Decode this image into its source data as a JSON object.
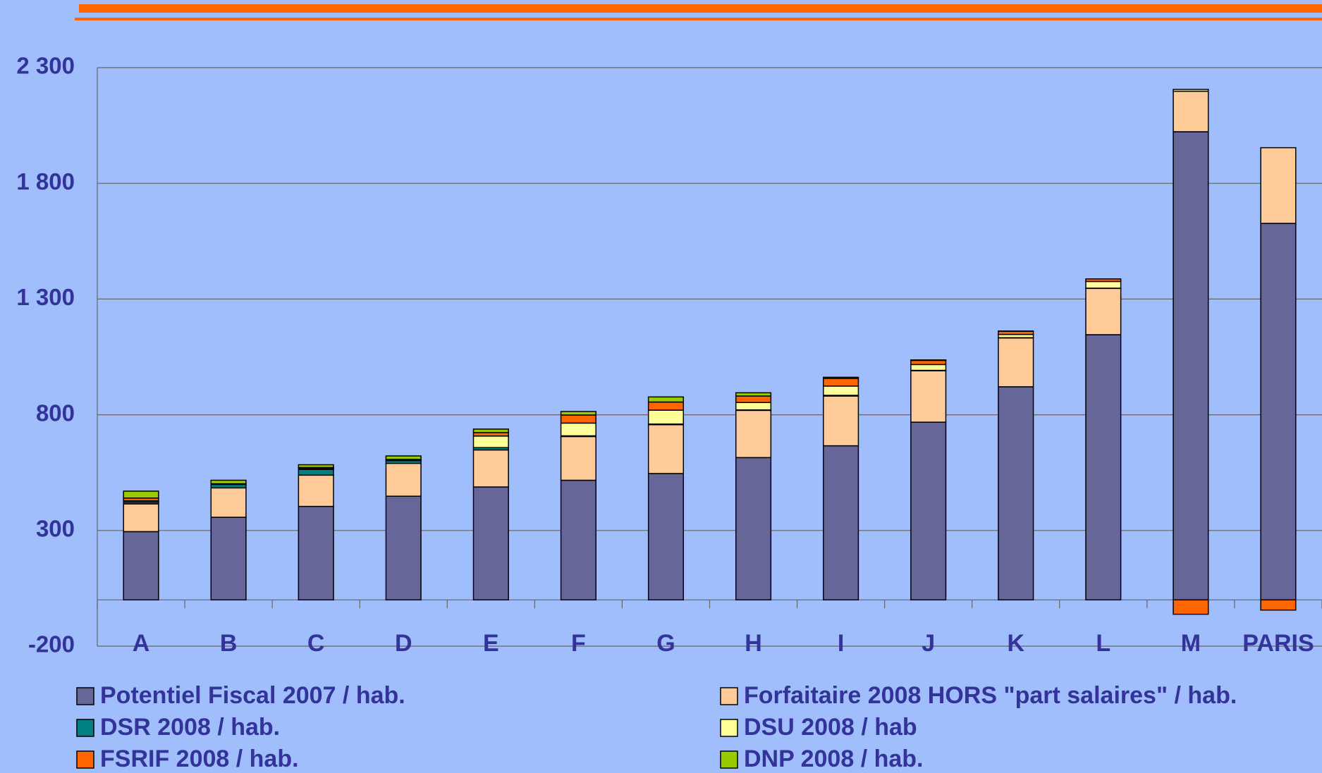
{
  "chart_data": {
    "type": "stacked_bar",
    "categories": [
      "A",
      "B",
      "C",
      "D",
      "E",
      "F",
      "G",
      "H",
      "I",
      "J",
      "K",
      "L",
      "M",
      "PARIS"
    ],
    "series": [
      {
        "name": "Potentiel Fiscal 2007 / hab.",
        "color": "#666699",
        "values": [
          295,
          357,
          404,
          448,
          488,
          517,
          546,
          615,
          666,
          768,
          921,
          1146,
          2023,
          1627
        ]
      },
      {
        "name": "Forfaitaire 2008 HORS \"part salaires\" / hab.",
        "color": "#ffcc99",
        "values": [
          120,
          127,
          135,
          142,
          160,
          189,
          211,
          204,
          215,
          222,
          211,
          200,
          175,
          327
        ]
      },
      {
        "name": "DSR 2008 / hab.",
        "color": "#008080",
        "values": [
          8,
          15,
          25,
          12,
          10,
          3,
          3,
          2,
          3,
          2,
          1,
          1,
          0,
          0
        ]
      },
      {
        "name": "DSU 2008 / hab",
        "color": "#ffff99",
        "values": [
          5,
          0,
          3,
          2,
          50,
          55,
          60,
          32,
          40,
          25,
          14,
          29,
          8,
          0
        ]
      },
      {
        "name": "FSRIF 2008 / hab.",
        "color": "#ff6600",
        "values": [
          12,
          3,
          5,
          3,
          15,
          35,
          35,
          28,
          33,
          18,
          14,
          11,
          -62,
          -44
        ]
      },
      {
        "name": "DNP 2008 / hab.",
        "color": "#99cc00",
        "values": [
          30,
          15,
          12,
          15,
          15,
          15,
          22,
          14,
          5,
          2,
          1,
          0,
          0,
          0
        ]
      }
    ],
    "ylim": [
      -200,
      2300
    ],
    "yticks": [
      {
        "value": 2300,
        "label": "2 300"
      },
      {
        "value": 1800,
        "label": "1 800"
      },
      {
        "value": 1300,
        "label": "1 300"
      },
      800,
      300,
      -200
    ],
    "grid": true
  }
}
